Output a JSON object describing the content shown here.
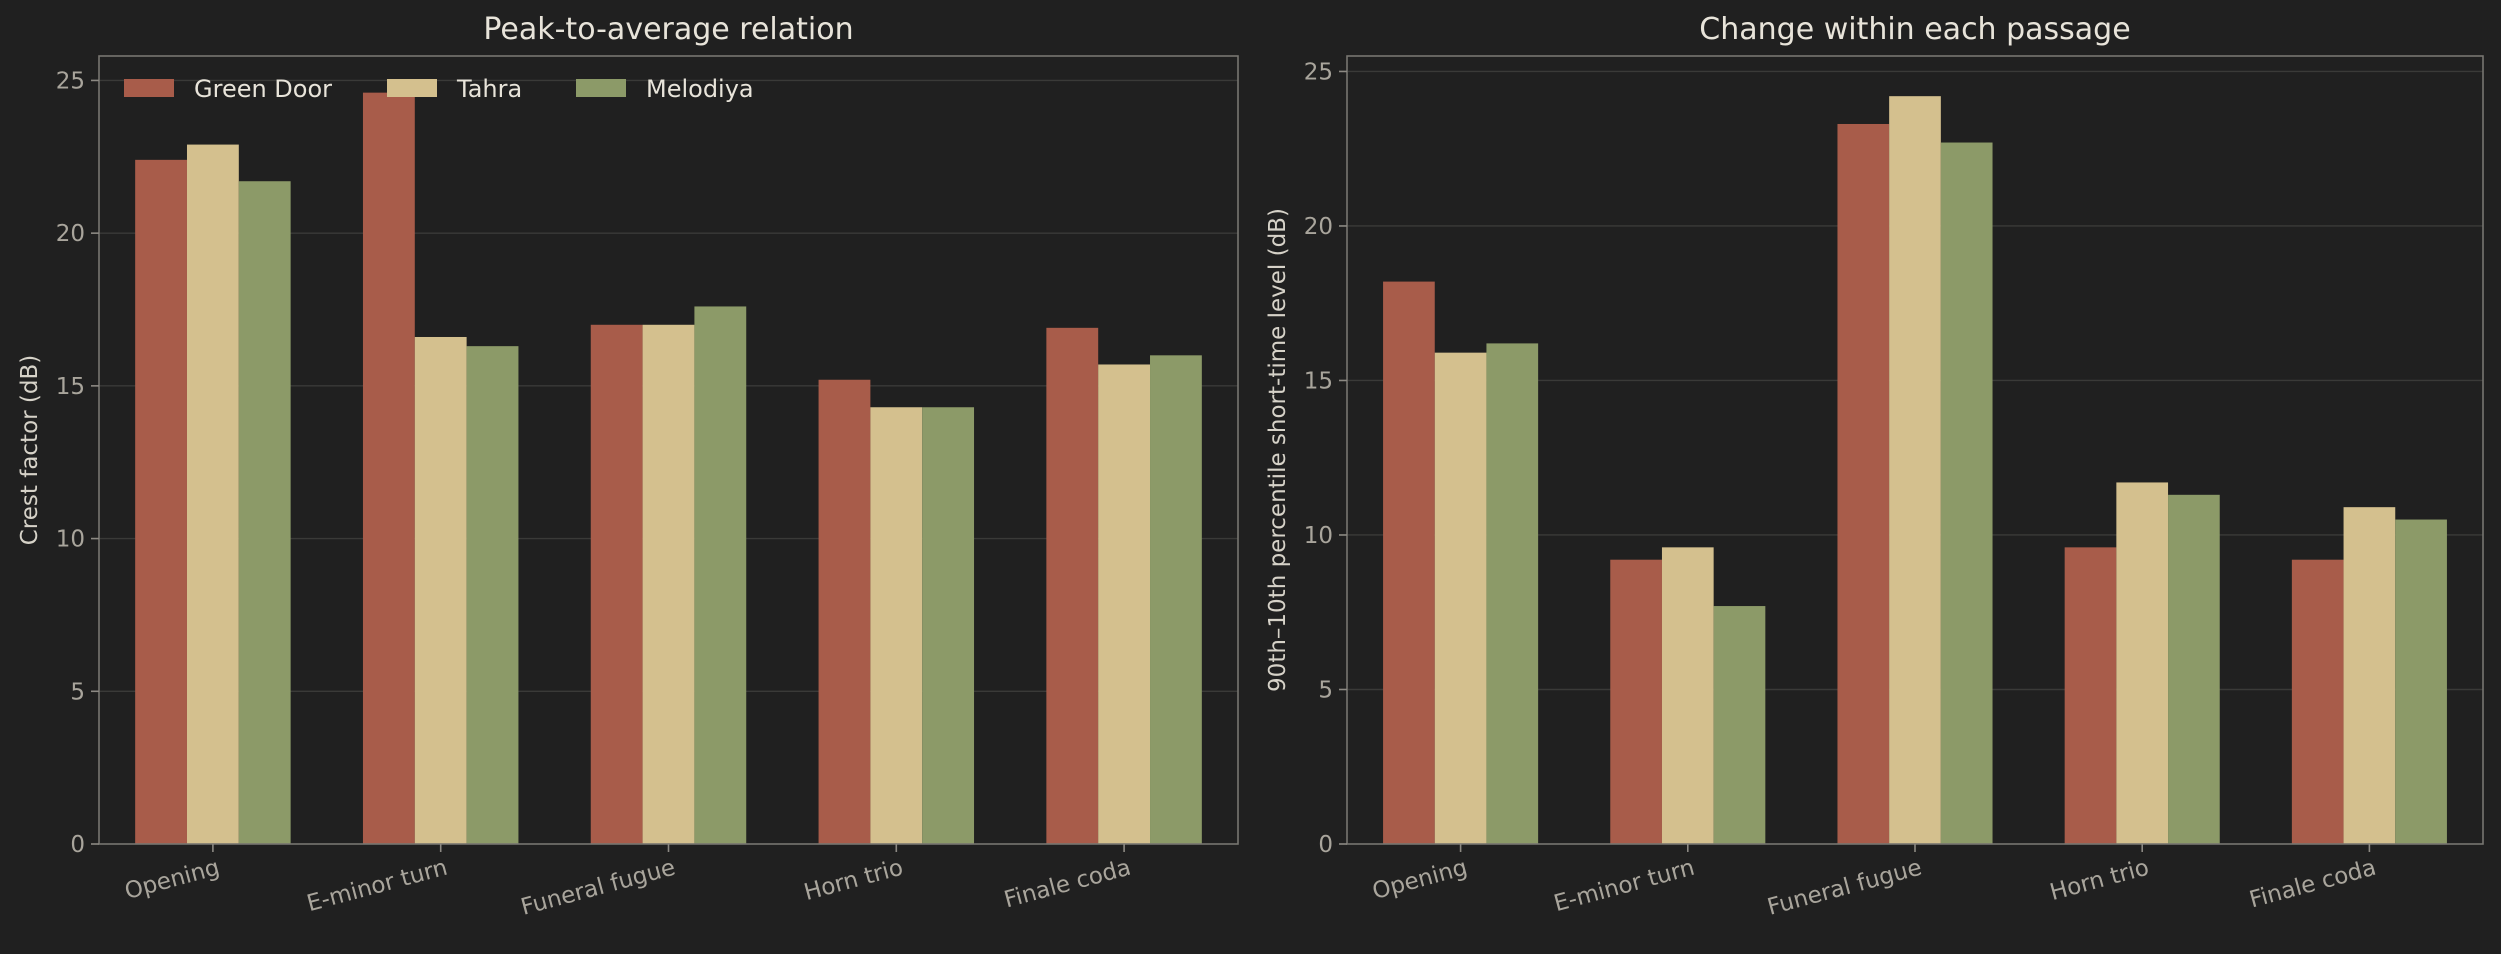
{
  "chart_data": [
    {
      "type": "bar",
      "title": "Peak-to-average relation",
      "ylabel": "Crest factor (dB)",
      "xlabel": "",
      "ylim": [
        0,
        25.8
      ],
      "yticks": [
        0,
        5,
        10,
        15,
        20,
        25
      ],
      "grid": true,
      "legend": "top-left",
      "categories": [
        "Opening",
        "E-minor turn",
        "Funeral fugue",
        "Horn trio",
        "Finale coda"
      ],
      "series": [
        {
          "name": "Green Door",
          "color": "#a85c4a",
          "values": [
            22.4,
            24.6,
            17.0,
            15.2,
            16.9
          ]
        },
        {
          "name": "Tahra",
          "color": "#d4c08e",
          "values": [
            22.9,
            16.6,
            17.0,
            14.3,
            15.7
          ]
        },
        {
          "name": "Melodiya",
          "color": "#8c9a68",
          "values": [
            21.7,
            16.3,
            17.6,
            14.3,
            16.0
          ]
        }
      ]
    },
    {
      "type": "bar",
      "title": "Change within each passage",
      "ylabel": "90th–10th percentile short-time level (dB)",
      "xlabel": "",
      "ylim": [
        0,
        25.5
      ],
      "yticks": [
        0,
        5,
        10,
        15,
        20,
        25
      ],
      "grid": true,
      "categories": [
        "Opening",
        "E-minor turn",
        "Funeral fugue",
        "Horn trio",
        "Finale coda"
      ],
      "series": [
        {
          "name": "Green Door",
          "color": "#a85c4a",
          "values": [
            18.2,
            9.2,
            23.3,
            9.6,
            9.2
          ]
        },
        {
          "name": "Tahra",
          "color": "#d4c08e",
          "values": [
            15.9,
            9.6,
            24.2,
            11.7,
            10.9
          ]
        },
        {
          "name": "Melodiya",
          "color": "#8c9a68",
          "values": [
            16.2,
            7.7,
            22.7,
            11.3,
            10.5
          ]
        }
      ]
    }
  ]
}
